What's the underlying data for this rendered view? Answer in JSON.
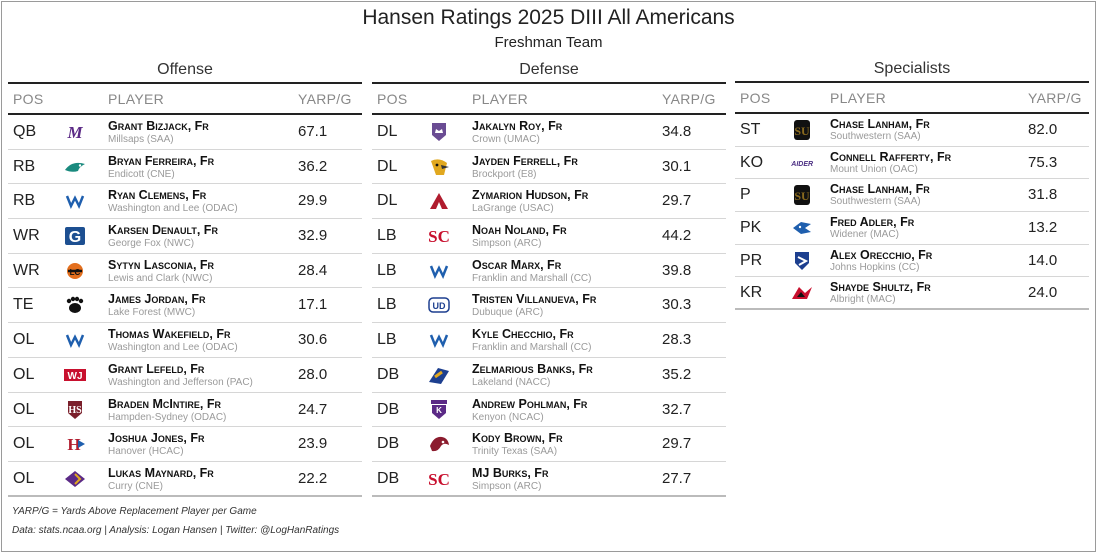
{
  "title": "Hansen Ratings 2025 DIII All Americans",
  "subtitle": "Freshman Team",
  "columns": {
    "pos": "POS",
    "player": "PLAYER",
    "value": "YARP/G"
  },
  "offense": {
    "title": "Offense",
    "rows": [
      {
        "pos": "QB",
        "name": "Grant Bizjack, Fr",
        "school": "Millsaps (SAA)",
        "value": "67.1",
        "logo": "millsaps-logo",
        "color": "#5b2a86"
      },
      {
        "pos": "RB",
        "name": "Bryan Ferreira, Fr",
        "school": "Endicott (CNE)",
        "value": "36.2",
        "logo": "endicott-logo",
        "color": "#1a8a7e"
      },
      {
        "pos": "RB",
        "name": "Ryan Clemens, Fr",
        "school": "Washington and Lee (ODAC)",
        "value": "29.9",
        "logo": "wl-logo",
        "color": "#1f5fae"
      },
      {
        "pos": "WR",
        "name": "Karsen Denault, Fr",
        "school": "George Fox (NWC)",
        "value": "32.9",
        "logo": "george-fox-logo",
        "color": "#1d4f91"
      },
      {
        "pos": "WR",
        "name": "Sytyn Lasconia, Fr",
        "school": "Lewis and Clark (NWC)",
        "value": "28.4",
        "logo": "lewis-clark-logo",
        "color": "#e36f1e"
      },
      {
        "pos": "TE",
        "name": "James Jordan, Fr",
        "school": "Lake Forest (MWC)",
        "value": "17.1",
        "logo": "lake-forest-logo",
        "color": "#111111"
      },
      {
        "pos": "OL",
        "name": "Thomas Wakefield, Fr",
        "school": "Washington and Lee (ODAC)",
        "value": "30.6",
        "logo": "wl-logo",
        "color": "#1f5fae"
      },
      {
        "pos": "OL",
        "name": "Grant Lefeld, Fr",
        "school": "Washington and Jefferson (PAC)",
        "value": "28.0",
        "logo": "wj-logo",
        "color": "#c8102e"
      },
      {
        "pos": "OL",
        "name": "Braden McIntire, Fr",
        "school": "Hampden-Sydney (ODAC)",
        "value": "24.7",
        "logo": "hampden-sydney-logo",
        "color": "#7a1f2b"
      },
      {
        "pos": "OL",
        "name": "Joshua Jones, Fr",
        "school": "Hanover (HCAC)",
        "value": "23.9",
        "logo": "hanover-logo",
        "color": "#b01c2e"
      },
      {
        "pos": "OL",
        "name": "Lukas Maynard, Fr",
        "school": "Curry (CNE)",
        "value": "22.2",
        "logo": "curry-logo",
        "color": "#5b2a86"
      }
    ]
  },
  "defense": {
    "title": "Defense",
    "rows": [
      {
        "pos": "DL",
        "name": "Jakalyn Roy, Fr",
        "school": "Crown (UMAC)",
        "value": "34.8",
        "logo": "crown-logo",
        "color": "#6a4c93"
      },
      {
        "pos": "DL",
        "name": "Jayden Ferrell, Fr",
        "school": "Brockport (E8)",
        "value": "30.1",
        "logo": "brockport-logo",
        "color": "#e1a81f"
      },
      {
        "pos": "DL",
        "name": "Zymarion Hudson, Fr",
        "school": "LaGrange (USAC)",
        "value": "29.7",
        "logo": "lagrange-logo",
        "color": "#b01c2e"
      },
      {
        "pos": "LB",
        "name": "Noah Noland, Fr",
        "school": "Simpson (ARC)",
        "value": "44.2",
        "logo": "simpson-logo",
        "color": "#c8102e"
      },
      {
        "pos": "LB",
        "name": "Oscar Marx, Fr",
        "school": "Franklin and Marshall (CC)",
        "value": "39.8",
        "logo": "fm-logo",
        "color": "#1f5fae"
      },
      {
        "pos": "LB",
        "name": "Tristen Villanueva, Fr",
        "school": "Dubuque (ARC)",
        "value": "30.3",
        "logo": "dubuque-logo",
        "color": "#1d3f8f"
      },
      {
        "pos": "LB",
        "name": "Kyle Checchio, Fr",
        "school": "Franklin and Marshall (CC)",
        "value": "28.3",
        "logo": "fm-logo",
        "color": "#1f5fae"
      },
      {
        "pos": "DB",
        "name": "Zelmarious Banks, Fr",
        "school": "Lakeland (NACC)",
        "value": "35.2",
        "logo": "lakeland-logo",
        "color": "#1d3f8f"
      },
      {
        "pos": "DB",
        "name": "Andrew Pohlman, Fr",
        "school": "Kenyon (NCAC)",
        "value": "32.7",
        "logo": "kenyon-logo",
        "color": "#5b2a86"
      },
      {
        "pos": "DB",
        "name": "Kody Brown, Fr",
        "school": "Trinity Texas (SAA)",
        "value": "29.7",
        "logo": "trinity-logo",
        "color": "#8b1c2e"
      },
      {
        "pos": "DB",
        "name": "MJ Burks, Fr",
        "school": "Simpson (ARC)",
        "value": "27.7",
        "logo": "simpson-logo",
        "color": "#c8102e"
      }
    ]
  },
  "specialists": {
    "title": "Specialists",
    "rows": [
      {
        "pos": "ST",
        "name": "Chase Lanham, Fr",
        "school": "Southwestern (SAA)",
        "value": "82.0",
        "logo": "southwestern-logo",
        "color": "#8a6a1e"
      },
      {
        "pos": "KO",
        "name": "Connell Rafferty, Fr",
        "school": "Mount Union (OAC)",
        "value": "75.3",
        "logo": "mount-union-logo",
        "color": "#4b2e83"
      },
      {
        "pos": "P",
        "name": "Chase Lanham, Fr",
        "school": "Southwestern (SAA)",
        "value": "31.8",
        "logo": "southwestern-logo",
        "color": "#8a6a1e"
      },
      {
        "pos": "PK",
        "name": "Fred Adler, Fr",
        "school": "Widener (MAC)",
        "value": "13.2",
        "logo": "widener-logo",
        "color": "#1f5fae"
      },
      {
        "pos": "PR",
        "name": "Alex Orecchio, Fr",
        "school": "Johns Hopkins (CC)",
        "value": "14.0",
        "logo": "johns-hopkins-logo",
        "color": "#1d3f8f"
      },
      {
        "pos": "KR",
        "name": "Shayde Shultz, Fr",
        "school": "Albright (MAC)",
        "value": "24.0",
        "logo": "albright-logo",
        "color": "#c8102e"
      }
    ]
  },
  "footnote": "YARP/G = Yards Above Replacement Player per Game",
  "credits": "Data: stats.ncaa.org | Analysis: Logan Hansen | Twitter: @LogHanRatings"
}
